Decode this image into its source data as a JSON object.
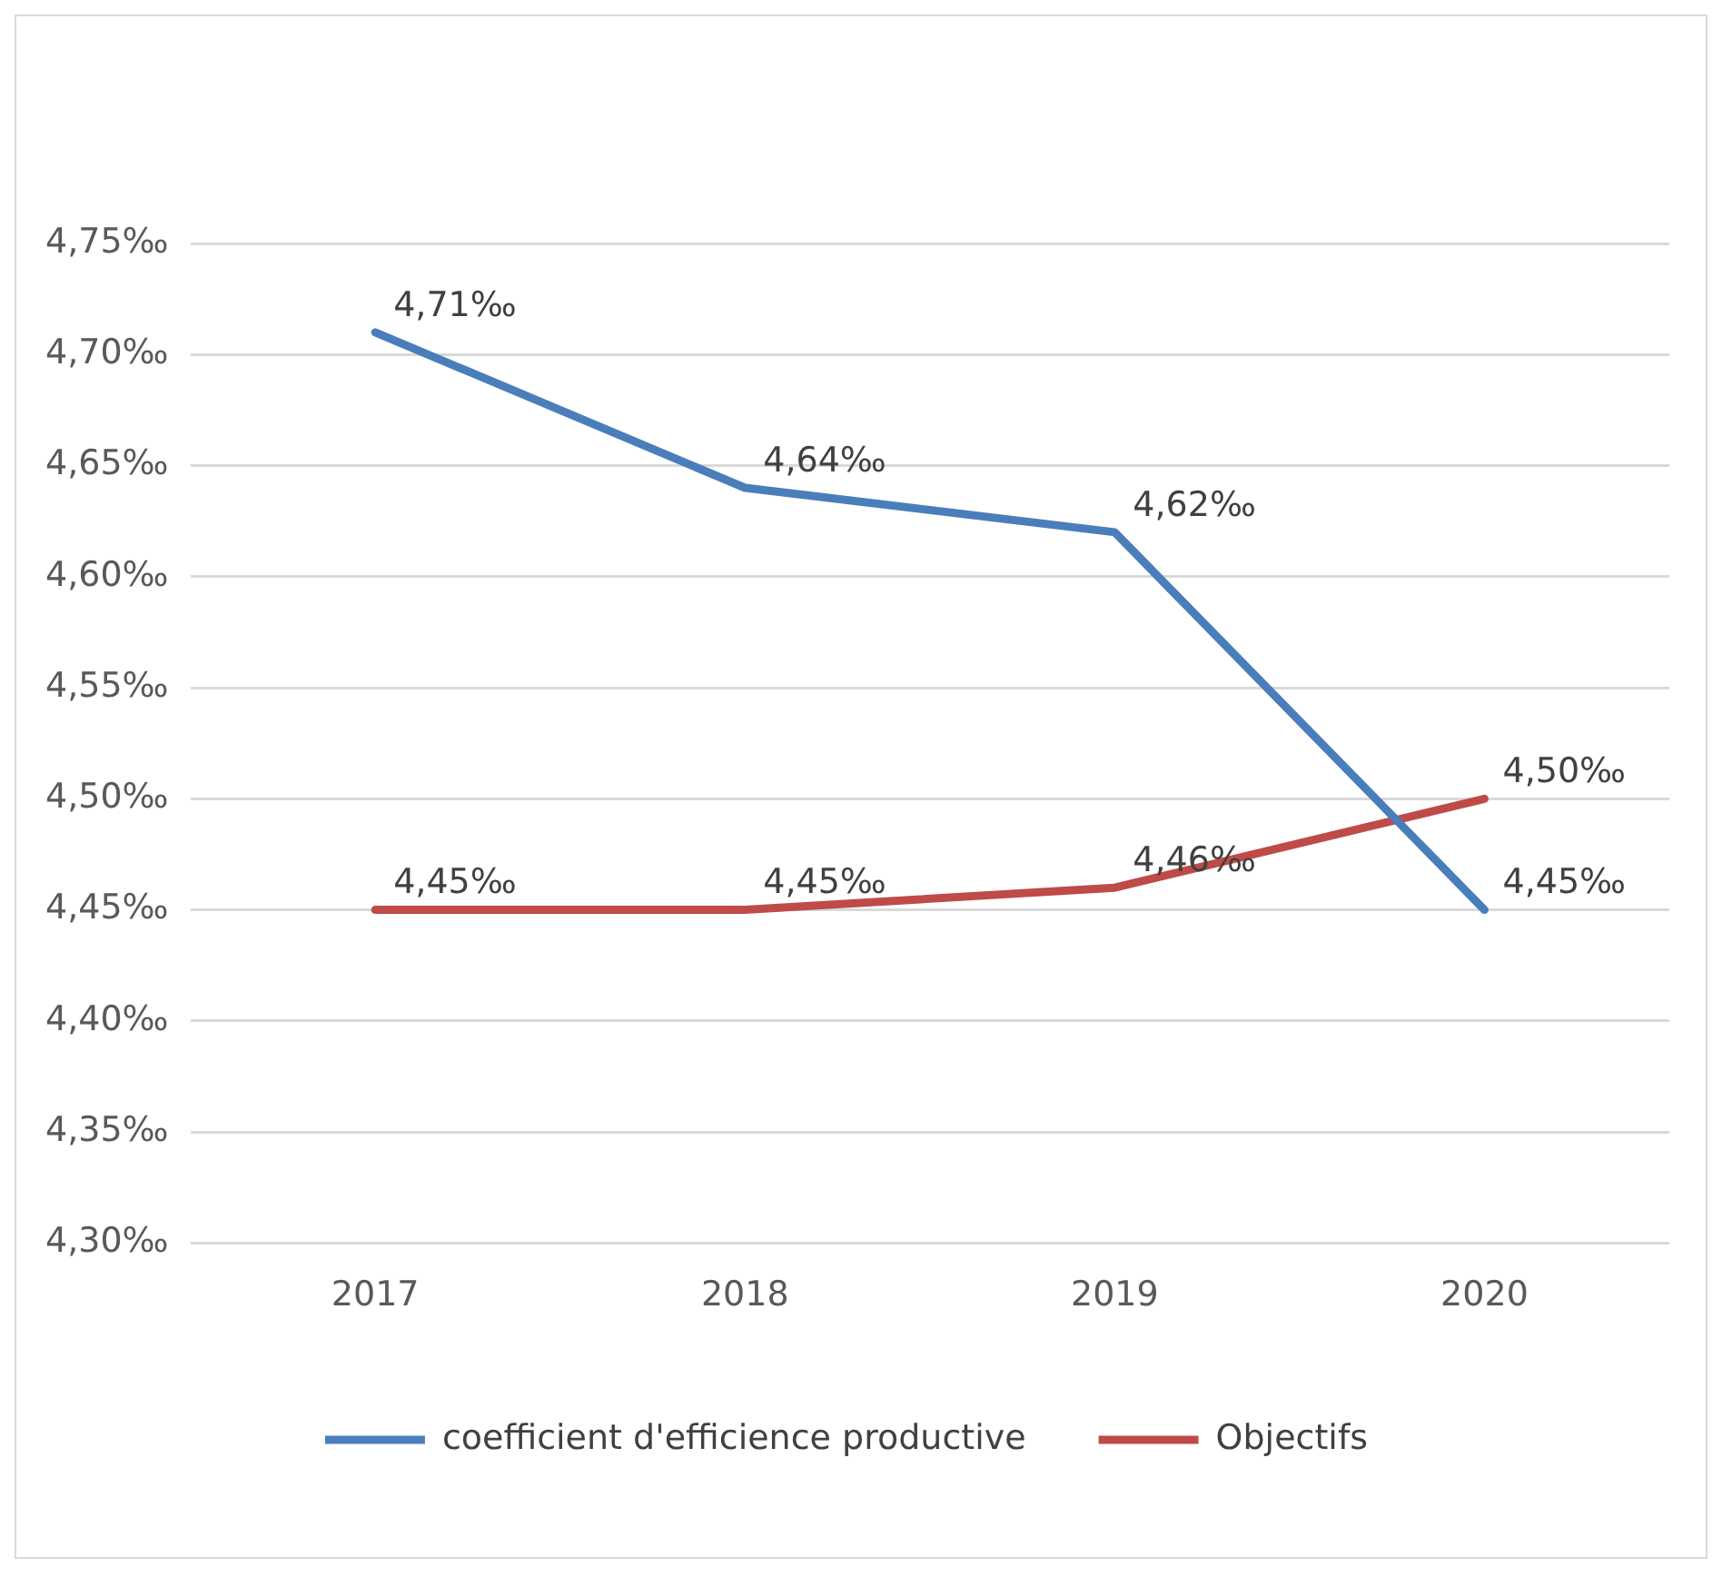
{
  "chart_data": {
    "type": "line",
    "categories": [
      "2017",
      "2018",
      "2019",
      "2020"
    ],
    "series": [
      {
        "name": "coefficient d'efficience productive",
        "color": "#4a7ebb",
        "values": [
          4.71,
          4.64,
          4.62,
          4.45
        ],
        "value_labels": [
          "4,71‰",
          "4,64‰",
          "4,62‰",
          "4,45‰"
        ]
      },
      {
        "name": "Objectifs",
        "color": "#be4b48",
        "values": [
          4.45,
          4.45,
          4.46,
          4.5
        ],
        "value_labels": [
          "4,45‰",
          "4,45‰",
          "4,46‰",
          "4,50‰"
        ]
      }
    ],
    "ylim": [
      4.3,
      4.75
    ],
    "yticks": [
      {
        "value": 4.3,
        "label": "4,30‰"
      },
      {
        "value": 4.35,
        "label": "4,35‰"
      },
      {
        "value": 4.4,
        "label": "4,40‰"
      },
      {
        "value": 4.45,
        "label": "4,45‰"
      },
      {
        "value": 4.5,
        "label": "4,50‰"
      },
      {
        "value": 4.55,
        "label": "4,55‰"
      },
      {
        "value": 4.6,
        "label": "4,60‰"
      },
      {
        "value": 4.65,
        "label": "4,65‰"
      },
      {
        "value": 4.7,
        "label": "4,70‰"
      },
      {
        "value": 4.75,
        "label": "4,75‰"
      }
    ],
    "grid": "y",
    "legend": "bottom",
    "marker": "none",
    "line_style": "solid"
  }
}
